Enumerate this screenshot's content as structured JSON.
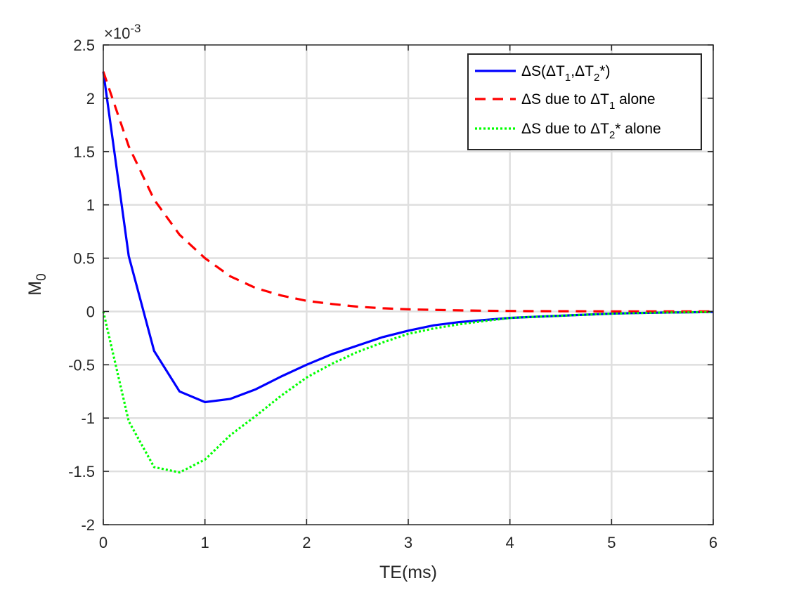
{
  "chart_data": {
    "type": "line",
    "xlabel": "TE(ms)",
    "ylabel": "M",
    "ylabel_subscript": "0",
    "y_exponent": {
      "base": "×10",
      "power": "-3"
    },
    "xlim": [
      0,
      6
    ],
    "ylim": [
      -2,
      2.5
    ],
    "xticks": [
      0,
      1,
      2,
      3,
      4,
      5,
      6
    ],
    "yticks": [
      -2,
      -1.5,
      -1,
      -0.5,
      0,
      0.5,
      1,
      1.5,
      2,
      2.5
    ],
    "ytick_labels": [
      "-2",
      "-1.5",
      "-1",
      "-0.5",
      "0",
      "0.5",
      "1",
      "1.5",
      "2",
      "2.5"
    ],
    "grid": true,
    "legend_position": "top-right",
    "x": [
      0,
      0.25,
      0.5,
      0.75,
      1,
      1.25,
      1.5,
      1.75,
      2,
      2.25,
      2.5,
      2.75,
      3,
      3.25,
      3.5,
      3.75,
      4,
      4.25,
      4.5,
      4.75,
      5,
      5.25,
      5.5,
      5.75,
      6
    ],
    "series": [
      {
        "name": "ΔS(ΔT1,ΔT2*)",
        "legend": {
          "main": "ΔS(ΔT",
          "sub1": "1",
          "mid": ",ΔT",
          "sub2": "2",
          "tail": "*)"
        },
        "color": "#0000ff",
        "style": "solid",
        "values": [
          2.25,
          0.52,
          -0.37,
          -0.75,
          -0.85,
          -0.82,
          -0.73,
          -0.61,
          -0.5,
          -0.4,
          -0.32,
          -0.24,
          -0.18,
          -0.13,
          -0.1,
          -0.08,
          -0.06,
          -0.05,
          -0.04,
          -0.03,
          -0.02,
          -0.015,
          -0.01,
          -0.008,
          -0.005
        ]
      },
      {
        "name": "ΔS due to ΔT1 alone",
        "legend": {
          "main": "ΔS due to ΔT",
          "sub1": "1",
          "tail": " alone"
        },
        "color": "#ff0000",
        "style": "dashed",
        "values": [
          2.25,
          1.55,
          1.05,
          0.72,
          0.5,
          0.33,
          0.22,
          0.15,
          0.1,
          0.07,
          0.045,
          0.03,
          0.02,
          0.015,
          0.01,
          0.007,
          0.005,
          0.003,
          0.002,
          0.0015,
          0.001,
          0.0007,
          0.0005,
          0.0003,
          0.0002
        ]
      },
      {
        "name": "ΔS due to ΔT2* alone",
        "legend": {
          "main": "ΔS due to ΔT",
          "sub1": "2",
          "tail": "* alone"
        },
        "color": "#00ff00",
        "style": "dotted",
        "values": [
          0,
          -1.03,
          -1.46,
          -1.51,
          -1.39,
          -1.16,
          -0.98,
          -0.79,
          -0.62,
          -0.49,
          -0.38,
          -0.29,
          -0.21,
          -0.16,
          -0.12,
          -0.09,
          -0.06,
          -0.05,
          -0.04,
          -0.03,
          -0.02,
          -0.015,
          -0.01,
          -0.008,
          -0.005
        ]
      }
    ]
  }
}
